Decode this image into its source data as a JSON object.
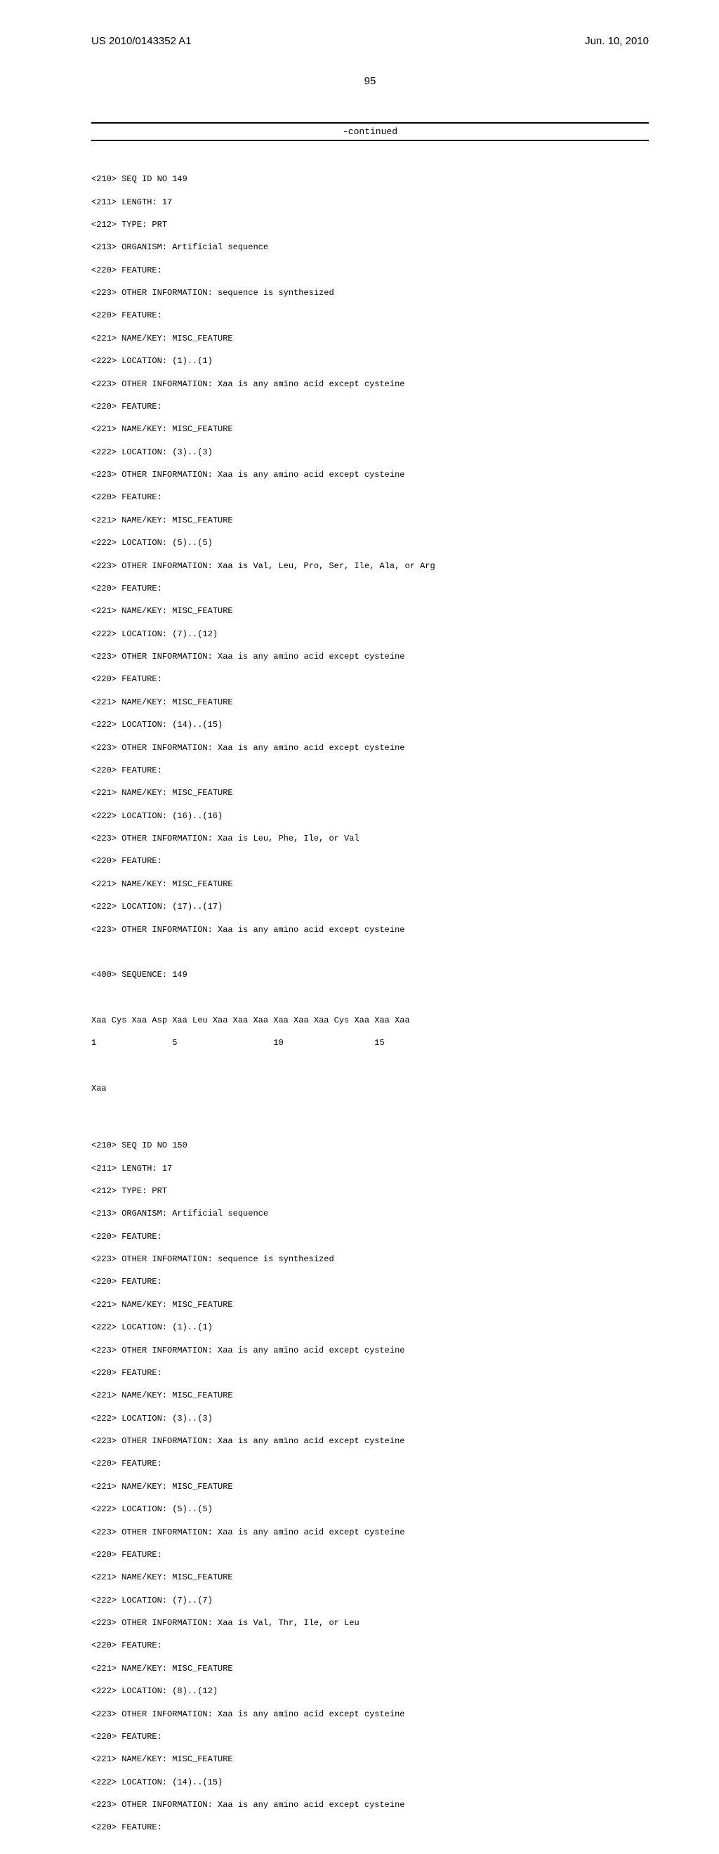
{
  "hdr": {
    "pub": "US 2010/0143352 A1",
    "date": "Jun. 10, 2010"
  },
  "pn": "95",
  "cont": "-continued",
  "seq": {
    "s149_id": "<210> SEQ ID NO 149",
    "s149_len": "<211> LENGTH: 17",
    "s149_type": "<212> TYPE: PRT",
    "s149_org": "<213> ORGANISM: Artificial sequence",
    "s149_f1": "<220> FEATURE:",
    "s149_o1": "<223> OTHER INFORMATION: sequence is synthesized",
    "s149_f2": "<220> FEATURE:",
    "s149_n2": "<221> NAME/KEY: MISC_FEATURE",
    "s149_l2": "<222> LOCATION: (1)..(1)",
    "s149_o2": "<223> OTHER INFORMATION: Xaa is any amino acid except cysteine",
    "s149_f3": "<220> FEATURE:",
    "s149_n3": "<221> NAME/KEY: MISC_FEATURE",
    "s149_l3": "<222> LOCATION: (3)..(3)",
    "s149_o3": "<223> OTHER INFORMATION: Xaa is any amino acid except cysteine",
    "s149_f4": "<220> FEATURE:",
    "s149_n4": "<221> NAME/KEY: MISC_FEATURE",
    "s149_l4": "<222> LOCATION: (5)..(5)",
    "s149_o4": "<223> OTHER INFORMATION: Xaa is Val, Leu, Pro, Ser, Ile, Ala, or Arg",
    "s149_f5": "<220> FEATURE:",
    "s149_n5": "<221> NAME/KEY: MISC_FEATURE",
    "s149_l5": "<222> LOCATION: (7)..(12)",
    "s149_o5": "<223> OTHER INFORMATION: Xaa is any amino acid except cysteine",
    "s149_f6": "<220> FEATURE:",
    "s149_n6": "<221> NAME/KEY: MISC_FEATURE",
    "s149_l6": "<222> LOCATION: (14)..(15)",
    "s149_o6": "<223> OTHER INFORMATION: Xaa is any amino acid except cysteine",
    "s149_f7": "<220> FEATURE:",
    "s149_n7": "<221> NAME/KEY: MISC_FEATURE",
    "s149_l7": "<222> LOCATION: (16)..(16)",
    "s149_o7": "<223> OTHER INFORMATION: Xaa is Leu, Phe, Ile, or Val",
    "s149_f8": "<220> FEATURE:",
    "s149_n8": "<221> NAME/KEY: MISC_FEATURE",
    "s149_l8": "<222> LOCATION: (17)..(17)",
    "s149_o8": "<223> OTHER INFORMATION: Xaa is any amino acid except cysteine",
    "s149_sq": "<400> SEQUENCE: 149",
    "s149_aa": "Xaa Cys Xaa Asp Xaa Leu Xaa Xaa Xaa Xaa Xaa Xaa Cys Xaa Xaa Xaa",
    "s149_num": "1               5                   10                  15",
    "s149_aa2": "Xaa",
    "s150_id": "<210> SEQ ID NO 150",
    "s150_len": "<211> LENGTH: 17",
    "s150_type": "<212> TYPE: PRT",
    "s150_org": "<213> ORGANISM: Artificial sequence",
    "s150_f1": "<220> FEATURE:",
    "s150_o1": "<223> OTHER INFORMATION: sequence is synthesized",
    "s150_f2": "<220> FEATURE:",
    "s150_n2": "<221> NAME/KEY: MISC_FEATURE",
    "s150_l2": "<222> LOCATION: (1)..(1)",
    "s150_o2": "<223> OTHER INFORMATION: Xaa is any amino acid except cysteine",
    "s150_f3": "<220> FEATURE:",
    "s150_n3": "<221> NAME/KEY: MISC_FEATURE",
    "s150_l3": "<222> LOCATION: (3)..(3)",
    "s150_o3": "<223> OTHER INFORMATION: Xaa is any amino acid except cysteine",
    "s150_f4": "<220> FEATURE:",
    "s150_n4": "<221> NAME/KEY: MISC_FEATURE",
    "s150_l4": "<222> LOCATION: (5)..(5)",
    "s150_o4": "<223> OTHER INFORMATION: Xaa is any amino acid except cysteine",
    "s150_f5": "<220> FEATURE:",
    "s150_n5": "<221> NAME/KEY: MISC_FEATURE",
    "s150_l5": "<222> LOCATION: (7)..(7)",
    "s150_o5": "<223> OTHER INFORMATION: Xaa is Val, Thr, Ile, or Leu",
    "s150_f6": "<220> FEATURE:",
    "s150_n6": "<221> NAME/KEY: MISC_FEATURE",
    "s150_l6": "<222> LOCATION: (8)..(12)",
    "s150_o6": "<223> OTHER INFORMATION: Xaa is any amino acid except cysteine",
    "s150_f7": "<220> FEATURE:",
    "s150_n7": "<221> NAME/KEY: MISC_FEATURE",
    "s150_l7": "<222> LOCATION: (14)..(15)",
    "s150_o7": "<223> OTHER INFORMATION: Xaa is any amino acid except cysteine",
    "s150_f8": "<220> FEATURE:"
  }
}
